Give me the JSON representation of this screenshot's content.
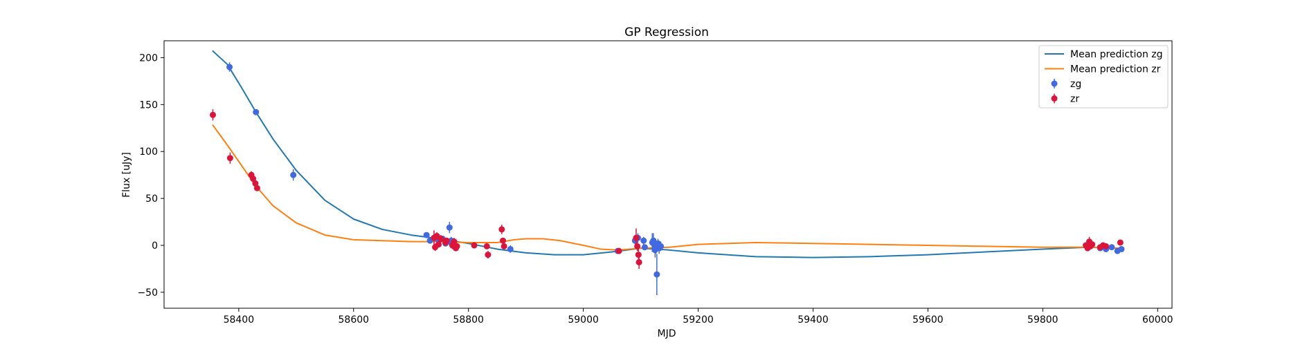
{
  "colors": {
    "zg_curve": "#1f77b4",
    "zr_curve": "#ff7f0e",
    "zg_points": "#4169e1",
    "zr_points": "#dc143c",
    "axes": "#000000",
    "legend_border": "#cccccc"
  },
  "chart_data": {
    "type": "scatter",
    "title": "GP Regression",
    "xlabel": "MJD",
    "ylabel": "Flux [uJy]",
    "xlim": [
      58270,
      60025
    ],
    "ylim": [
      -67,
      218
    ],
    "x_ticks": [
      58400,
      58600,
      58800,
      59000,
      59200,
      59400,
      59600,
      59800,
      60000
    ],
    "x_tick_labels": [
      "58400",
      "58600",
      "58800",
      "59000",
      "59200",
      "59400",
      "59600",
      "59800",
      "60000"
    ],
    "y_ticks": [
      -50,
      0,
      50,
      100,
      150,
      200
    ],
    "y_tick_labels": [
      "−50",
      "0",
      "50",
      "100",
      "150",
      "200"
    ],
    "grid": false,
    "legend_position": "top-right",
    "legend": [
      {
        "label": "Mean prediction zg",
        "kind": "line",
        "series": "zg_curve"
      },
      {
        "label": "Mean prediction zr",
        "kind": "line",
        "series": "zr_curve"
      },
      {
        "label": "zg",
        "kind": "errorbar",
        "series": "zg_points"
      },
      {
        "label": "zr",
        "kind": "errorbar",
        "series": "zr_points"
      }
    ],
    "series": [
      {
        "name": "Mean prediction zg",
        "type": "line",
        "color_key": "zg_curve",
        "x": [
          58355,
          58380,
          58405,
          58430,
          58460,
          58500,
          58550,
          58600,
          58650,
          58700,
          58750,
          58800,
          58850,
          58900,
          58950,
          59000,
          59050,
          59100,
          59150,
          59200,
          59300,
          59400,
          59500,
          59600,
          59700,
          59800,
          59880,
          59935
        ],
        "y": [
          207,
          193,
          168,
          142,
          113,
          80,
          48,
          28,
          17,
          11,
          7,
          2,
          -4,
          -8,
          -10,
          -10,
          -7,
          -3,
          -5,
          -8,
          -12,
          -13,
          -12,
          -10,
          -7,
          -4,
          -2,
          -3
        ]
      },
      {
        "name": "Mean prediction zr",
        "type": "line",
        "color_key": "zr_curve",
        "x": [
          58355,
          58380,
          58405,
          58430,
          58460,
          58500,
          58550,
          58600,
          58650,
          58700,
          58750,
          58800,
          58850,
          58880,
          58900,
          58930,
          58960,
          59000,
          59030,
          59060,
          59100,
          59150,
          59200,
          59300,
          59400,
          59500,
          59600,
          59700,
          59800,
          59880,
          59935
        ],
        "y": [
          128,
          107,
          85,
          63,
          42,
          24,
          11,
          6,
          5,
          4,
          4,
          3,
          3,
          6,
          7,
          7,
          5,
          0,
          -4,
          -5,
          -3,
          -2,
          1,
          3,
          2,
          1,
          0,
          -1,
          -2,
          -2,
          -3
        ]
      },
      {
        "name": "zg",
        "type": "errorbar",
        "color_key": "zg_points",
        "x": [
          58384,
          58430,
          58495,
          58727,
          58733,
          58742,
          58748,
          58755,
          58760,
          58765,
          58767,
          58770,
          58778,
          58873,
          59060,
          59090,
          59095,
          59105,
          59107,
          59120,
          59122,
          59124,
          59125,
          59126,
          59128,
          59130,
          59132,
          59135,
          59880,
          59900,
          59910,
          59920,
          59930,
          59937
        ],
        "y": [
          190,
          142,
          75,
          11,
          5,
          8,
          5,
          7,
          2,
          4,
          19,
          5,
          -2,
          -4,
          -6,
          5,
          8,
          5,
          -2,
          3,
          5,
          0,
          -5,
          -3,
          -31,
          2,
          -3,
          -1,
          0,
          -3,
          -4,
          -2,
          -6,
          -4
        ],
        "err": [
          5,
          2,
          6,
          2,
          3,
          3,
          2,
          3,
          3,
          3,
          6,
          4,
          2,
          4,
          3,
          4,
          5,
          4,
          3,
          10,
          8,
          8,
          8,
          6,
          22,
          5,
          6,
          5,
          3,
          2,
          3,
          2,
          3,
          3
        ]
      },
      {
        "name": "zr",
        "type": "errorbar",
        "color_key": "zr_points",
        "x": [
          58355,
          58385,
          58422,
          58425,
          58429,
          58432,
          58740,
          58742,
          58745,
          58748,
          58752,
          58760,
          58762,
          58772,
          58775,
          58778,
          58780,
          58810,
          58832,
          58834,
          58858,
          58860,
          58862,
          59062,
          59092,
          59094,
          59096,
          59097,
          59875,
          59878,
          59881,
          59883,
          59886,
          59900,
          59905,
          59910,
          59935
        ],
        "y": [
          139,
          93,
          75,
          71,
          66,
          61,
          8,
          -2,
          10,
          1,
          7,
          3,
          5,
          0,
          4,
          -3,
          -1,
          0,
          -1,
          -10,
          17,
          5,
          -1,
          -6,
          8,
          -1,
          -10,
          -18,
          0,
          -3,
          4,
          -1,
          1,
          -2,
          0,
          -1,
          3
        ],
        "err": [
          6,
          6,
          4,
          3,
          3,
          3,
          8,
          4,
          4,
          3,
          4,
          3,
          3,
          4,
          4,
          3,
          3,
          2,
          3,
          4,
          5,
          3,
          3,
          3,
          10,
          5,
          6,
          7,
          3,
          3,
          5,
          3,
          3,
          3,
          3,
          3,
          3
        ]
      }
    ]
  }
}
